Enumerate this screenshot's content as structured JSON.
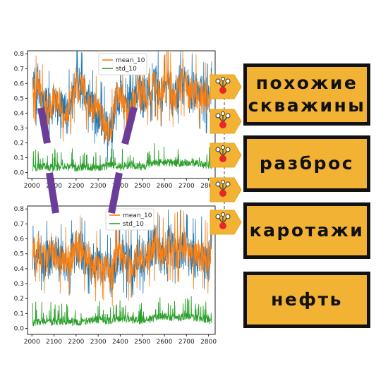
{
  "tags": [
    "похожие скважины",
    "разброс",
    "каротажи",
    "нефть"
  ],
  "colors": {
    "raw_line": "#1f77b4",
    "mean_line": "#ff7f0e",
    "std_line": "#2ca02c",
    "tag_fill": "#f2b233",
    "tag_border": "#111111",
    "connector": "#6a3d9a",
    "badge_fill": "#f2b233",
    "badge_dot": "#e8262a"
  },
  "badge_icon": "network-node-icon",
  "chart_data": [
    {
      "type": "line",
      "xlim": [
        1980,
        2830
      ],
      "ylim": [
        -0.04,
        0.82
      ],
      "xticks": [
        2000,
        2100,
        2200,
        2300,
        2400,
        2500,
        2600,
        2700,
        2800
      ],
      "yticks": [
        0.0,
        0.1,
        0.2,
        0.3,
        0.4,
        0.5,
        0.6,
        0.7,
        0.8
      ],
      "legend": "top-center",
      "series": [
        {
          "name": "",
          "color": "#1f77b4",
          "x": [
            2003,
            2010,
            2020,
            2030,
            2040,
            2060,
            2080,
            2100,
            2130,
            2160,
            2190,
            2200,
            2230,
            2260,
            2290,
            2320,
            2340,
            2360,
            2380,
            2400,
            2420,
            2440,
            2460,
            2480,
            2500,
            2530,
            2560,
            2590,
            2620,
            2650,
            2680,
            2710,
            2740,
            2770,
            2800,
            2815
          ],
          "y": [
            0.6,
            0.58,
            0.53,
            0.62,
            0.5,
            0.45,
            0.43,
            0.48,
            0.45,
            0.4,
            0.55,
            0.6,
            0.55,
            0.48,
            0.4,
            0.35,
            0.3,
            0.28,
            0.5,
            0.55,
            0.5,
            0.42,
            0.45,
            0.6,
            0.5,
            0.55,
            0.6,
            0.52,
            0.58,
            0.5,
            0.62,
            0.55,
            0.55,
            0.5,
            0.48,
            0.6
          ]
        },
        {
          "name": "mean_10",
          "color": "#ff7f0e",
          "x": [
            2003,
            2010,
            2020,
            2030,
            2040,
            2060,
            2080,
            2100,
            2130,
            2160,
            2190,
            2200,
            2230,
            2260,
            2290,
            2320,
            2340,
            2360,
            2380,
            2400,
            2420,
            2440,
            2460,
            2480,
            2500,
            2530,
            2560,
            2590,
            2620,
            2650,
            2680,
            2710,
            2740,
            2770,
            2800,
            2815
          ],
          "y": [
            0.6,
            0.58,
            0.53,
            0.62,
            0.5,
            0.45,
            0.43,
            0.48,
            0.45,
            0.4,
            0.55,
            0.6,
            0.55,
            0.48,
            0.4,
            0.35,
            0.3,
            0.28,
            0.5,
            0.55,
            0.5,
            0.42,
            0.45,
            0.6,
            0.5,
            0.55,
            0.6,
            0.52,
            0.58,
            0.5,
            0.62,
            0.55,
            0.55,
            0.5,
            0.48,
            0.6
          ]
        },
        {
          "name": "std_10",
          "color": "#2ca02c",
          "x": [
            2003,
            2050,
            2100,
            2150,
            2200,
            2250,
            2300,
            2350,
            2400,
            2450,
            2500,
            2550,
            2600,
            2650,
            2700,
            2750,
            2800,
            2815
          ],
          "y": [
            0.03,
            0.04,
            0.03,
            0.04,
            0.03,
            0.04,
            0.03,
            0.05,
            0.04,
            0.05,
            0.04,
            0.06,
            0.07,
            0.06,
            0.07,
            0.06,
            0.05,
            0.03
          ]
        }
      ]
    },
    {
      "type": "line",
      "xlim": [
        1980,
        2830
      ],
      "ylim": [
        -0.04,
        0.82
      ],
      "xticks": [
        2000,
        2100,
        2200,
        2300,
        2400,
        2500,
        2600,
        2700,
        2800
      ],
      "yticks": [
        0.0,
        0.1,
        0.2,
        0.3,
        0.4,
        0.5,
        0.6,
        0.7,
        0.8
      ],
      "legend": "top-right",
      "series": [
        {
          "name": "",
          "color": "#1f77b4",
          "x": [
            2003,
            2010,
            2020,
            2030,
            2040,
            2060,
            2080,
            2100,
            2130,
            2160,
            2190,
            2200,
            2230,
            2260,
            2290,
            2320,
            2340,
            2360,
            2380,
            2400,
            2420,
            2440,
            2460,
            2480,
            2500,
            2530,
            2560,
            2590,
            2620,
            2650,
            2680,
            2710,
            2740,
            2770,
            2800,
            2815
          ],
          "y": [
            0.55,
            0.5,
            0.42,
            0.58,
            0.48,
            0.45,
            0.5,
            0.52,
            0.45,
            0.42,
            0.5,
            0.55,
            0.48,
            0.45,
            0.4,
            0.42,
            0.38,
            0.35,
            0.45,
            0.5,
            0.45,
            0.4,
            0.45,
            0.5,
            0.45,
            0.5,
            0.55,
            0.48,
            0.55,
            0.52,
            0.55,
            0.5,
            0.48,
            0.5,
            0.45,
            0.55
          ]
        },
        {
          "name": "mean_10",
          "color": "#ff7f0e",
          "x": [
            2003,
            2010,
            2020,
            2030,
            2040,
            2060,
            2080,
            2100,
            2130,
            2160,
            2190,
            2200,
            2230,
            2260,
            2290,
            2320,
            2340,
            2360,
            2380,
            2400,
            2420,
            2440,
            2460,
            2480,
            2500,
            2530,
            2560,
            2590,
            2620,
            2650,
            2680,
            2710,
            2740,
            2770,
            2800,
            2815
          ],
          "y": [
            0.55,
            0.5,
            0.42,
            0.58,
            0.48,
            0.45,
            0.5,
            0.52,
            0.45,
            0.42,
            0.5,
            0.55,
            0.48,
            0.45,
            0.4,
            0.42,
            0.38,
            0.35,
            0.45,
            0.5,
            0.45,
            0.4,
            0.45,
            0.5,
            0.45,
            0.5,
            0.55,
            0.48,
            0.55,
            0.52,
            0.55,
            0.5,
            0.48,
            0.5,
            0.45,
            0.55
          ]
        },
        {
          "name": "std_10",
          "color": "#2ca02c",
          "x": [
            2003,
            2050,
            2100,
            2150,
            2200,
            2250,
            2300,
            2350,
            2400,
            2450,
            2500,
            2550,
            2600,
            2650,
            2700,
            2750,
            2800,
            2815
          ],
          "y": [
            0.04,
            0.05,
            0.04,
            0.05,
            0.04,
            0.05,
            0.06,
            0.05,
            0.07,
            0.06,
            0.05,
            0.07,
            0.08,
            0.07,
            0.08,
            0.07,
            0.06,
            0.04
          ]
        }
      ]
    }
  ]
}
